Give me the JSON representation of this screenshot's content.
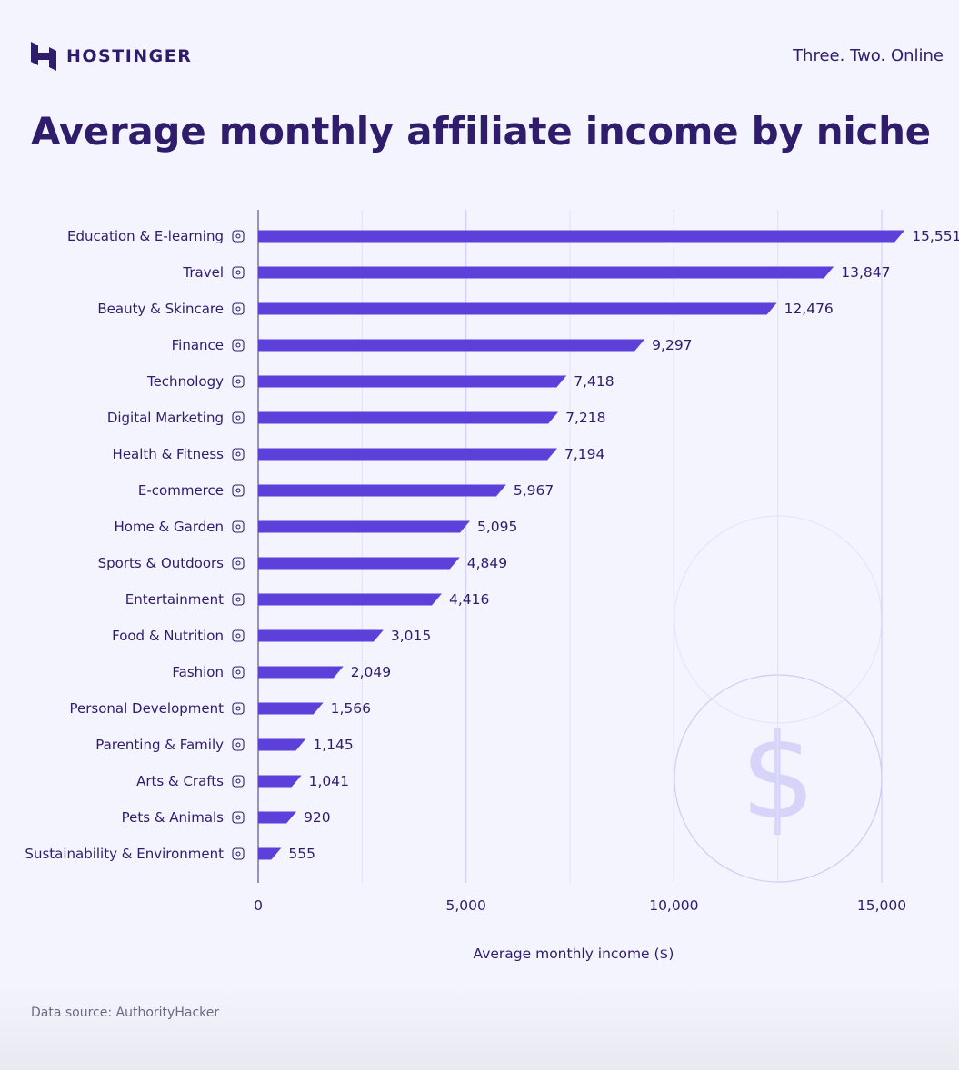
{
  "header": {
    "brand": "HOSTINGER",
    "tagline": "Three. Two. Online"
  },
  "footer": {
    "source": "Data source: AuthorityHacker"
  },
  "colors": {
    "bar": "#5d3fd9",
    "text": "#2f1c6a",
    "grid": "#d9d7f5",
    "background": "#f4f4fe",
    "decor": "#d6d4f8"
  },
  "chart_data": {
    "type": "bar",
    "orientation": "horizontal",
    "title": "Average monthly affiliate income by niche",
    "xlabel": "Average monthly income ($)",
    "ylabel": "",
    "xlim": [
      0,
      15000
    ],
    "xticks": [
      0,
      5000,
      10000,
      15000
    ],
    "xtick_labels": [
      "0",
      "5,000",
      "10,000",
      "15,000"
    ],
    "grid": "vertical, every 2,500",
    "legend": null,
    "categories": [
      "Education & E-learning",
      "Travel",
      "Beauty & Skincare",
      "Finance",
      "Technology",
      "Digital Marketing",
      "Health & Fitness",
      "E-commerce",
      "Home & Garden",
      "Sports & Outdoors",
      "Entertainment",
      "Food & Nutrition",
      "Fashion",
      "Personal Development",
      "Parenting & Family",
      "Arts & Crafts",
      "Pets & Animals",
      "Sustainability & Environment"
    ],
    "values": [
      15551,
      13847,
      12476,
      9297,
      7418,
      7218,
      7194,
      5967,
      5095,
      4849,
      4416,
      3015,
      2049,
      1566,
      1145,
      1041,
      920,
      555
    ],
    "value_labels": [
      "15,551",
      "13,847",
      "12,476",
      "9,297",
      "7,418",
      "7,218",
      "7,194",
      "5,967",
      "5,095",
      "4,849",
      "4,416",
      "3,015",
      "2,049",
      "1,566",
      "1,145",
      "1,041",
      "920",
      "555"
    ],
    "icons": [
      "book-icon",
      "globe-plane-icon",
      "lips-icon",
      "money-bag-icon",
      "monitor-icon",
      "megaphone-icon",
      "smartwatch-icon",
      "basket-icon",
      "leaf-icon",
      "bicycle-icon",
      "clapper-icon",
      "fork-knife-icon",
      "bow-tie-icon",
      "person-idea-icon",
      "person-heart-icon",
      "palette-icon",
      "cat-icon",
      "earth-icon"
    ]
  }
}
